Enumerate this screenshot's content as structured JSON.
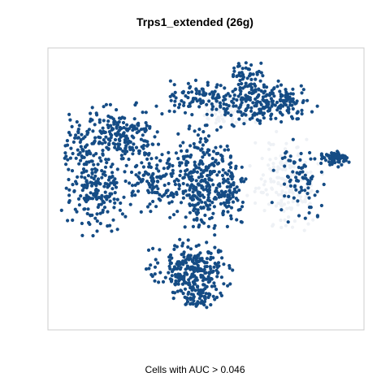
{
  "chart_data": {
    "type": "scatter",
    "title": "Trps1_extended (26g)",
    "caption": "Cells with AUC > 0.046",
    "xlabel": "",
    "ylabel": "",
    "axes": false,
    "grid": false,
    "legend": "none",
    "colors": {
      "active": "#154C85",
      "inactive": "#EEF1F5",
      "frame": "#CCCCCC"
    },
    "clusters": [
      {
        "name": "upper-right",
        "cx": 0.68,
        "cy": 0.19,
        "rx": 0.14,
        "ry": 0.07,
        "n": 240,
        "color": "#154C85"
      },
      {
        "name": "upper-center",
        "cx": 0.48,
        "cy": 0.17,
        "rx": 0.08,
        "ry": 0.05,
        "n": 90,
        "color": "#154C85"
      },
      {
        "name": "top-right-arm",
        "cx": 0.63,
        "cy": 0.09,
        "rx": 0.05,
        "ry": 0.05,
        "n": 50,
        "color": "#154C85"
      },
      {
        "name": "left-upper",
        "cx": 0.21,
        "cy": 0.3,
        "rx": 0.12,
        "ry": 0.09,
        "n": 210,
        "color": "#154C85"
      },
      {
        "name": "left-lower",
        "cx": 0.15,
        "cy": 0.5,
        "rx": 0.09,
        "ry": 0.13,
        "n": 190,
        "color": "#154C85"
      },
      {
        "name": "left-cap",
        "cx": 0.09,
        "cy": 0.35,
        "rx": 0.05,
        "ry": 0.05,
        "n": 40,
        "color": "#154C85"
      },
      {
        "name": "center-column",
        "cx": 0.47,
        "cy": 0.48,
        "rx": 0.07,
        "ry": 0.17,
        "n": 250,
        "color": "#154C85"
      },
      {
        "name": "center-mid",
        "cx": 0.34,
        "cy": 0.46,
        "rx": 0.08,
        "ry": 0.1,
        "n": 130,
        "color": "#154C85"
      },
      {
        "name": "center-right",
        "cx": 0.57,
        "cy": 0.5,
        "rx": 0.05,
        "ry": 0.12,
        "n": 110,
        "color": "#154C85"
      },
      {
        "name": "right-mid-patches",
        "cx": 0.8,
        "cy": 0.47,
        "rx": 0.07,
        "ry": 0.12,
        "n": 80,
        "color": "#154C85"
      },
      {
        "name": "far-right-blob",
        "cx": 0.91,
        "cy": 0.39,
        "rx": 0.04,
        "ry": 0.025,
        "n": 70,
        "color": "#154C85"
      },
      {
        "name": "bottom-cluster",
        "cx": 0.45,
        "cy": 0.79,
        "rx": 0.11,
        "ry": 0.09,
        "n": 260,
        "color": "#154C85"
      },
      {
        "name": "bottom-tail",
        "cx": 0.48,
        "cy": 0.89,
        "rx": 0.06,
        "ry": 0.04,
        "n": 60,
        "color": "#154C85"
      },
      {
        "name": "right-inactive",
        "cx": 0.76,
        "cy": 0.49,
        "rx": 0.1,
        "ry": 0.16,
        "n": 160,
        "color": "#EEF1F5"
      },
      {
        "name": "mid-inactive",
        "cx": 0.58,
        "cy": 0.22,
        "rx": 0.1,
        "ry": 0.06,
        "n": 60,
        "color": "#EEF1F5"
      }
    ]
  }
}
